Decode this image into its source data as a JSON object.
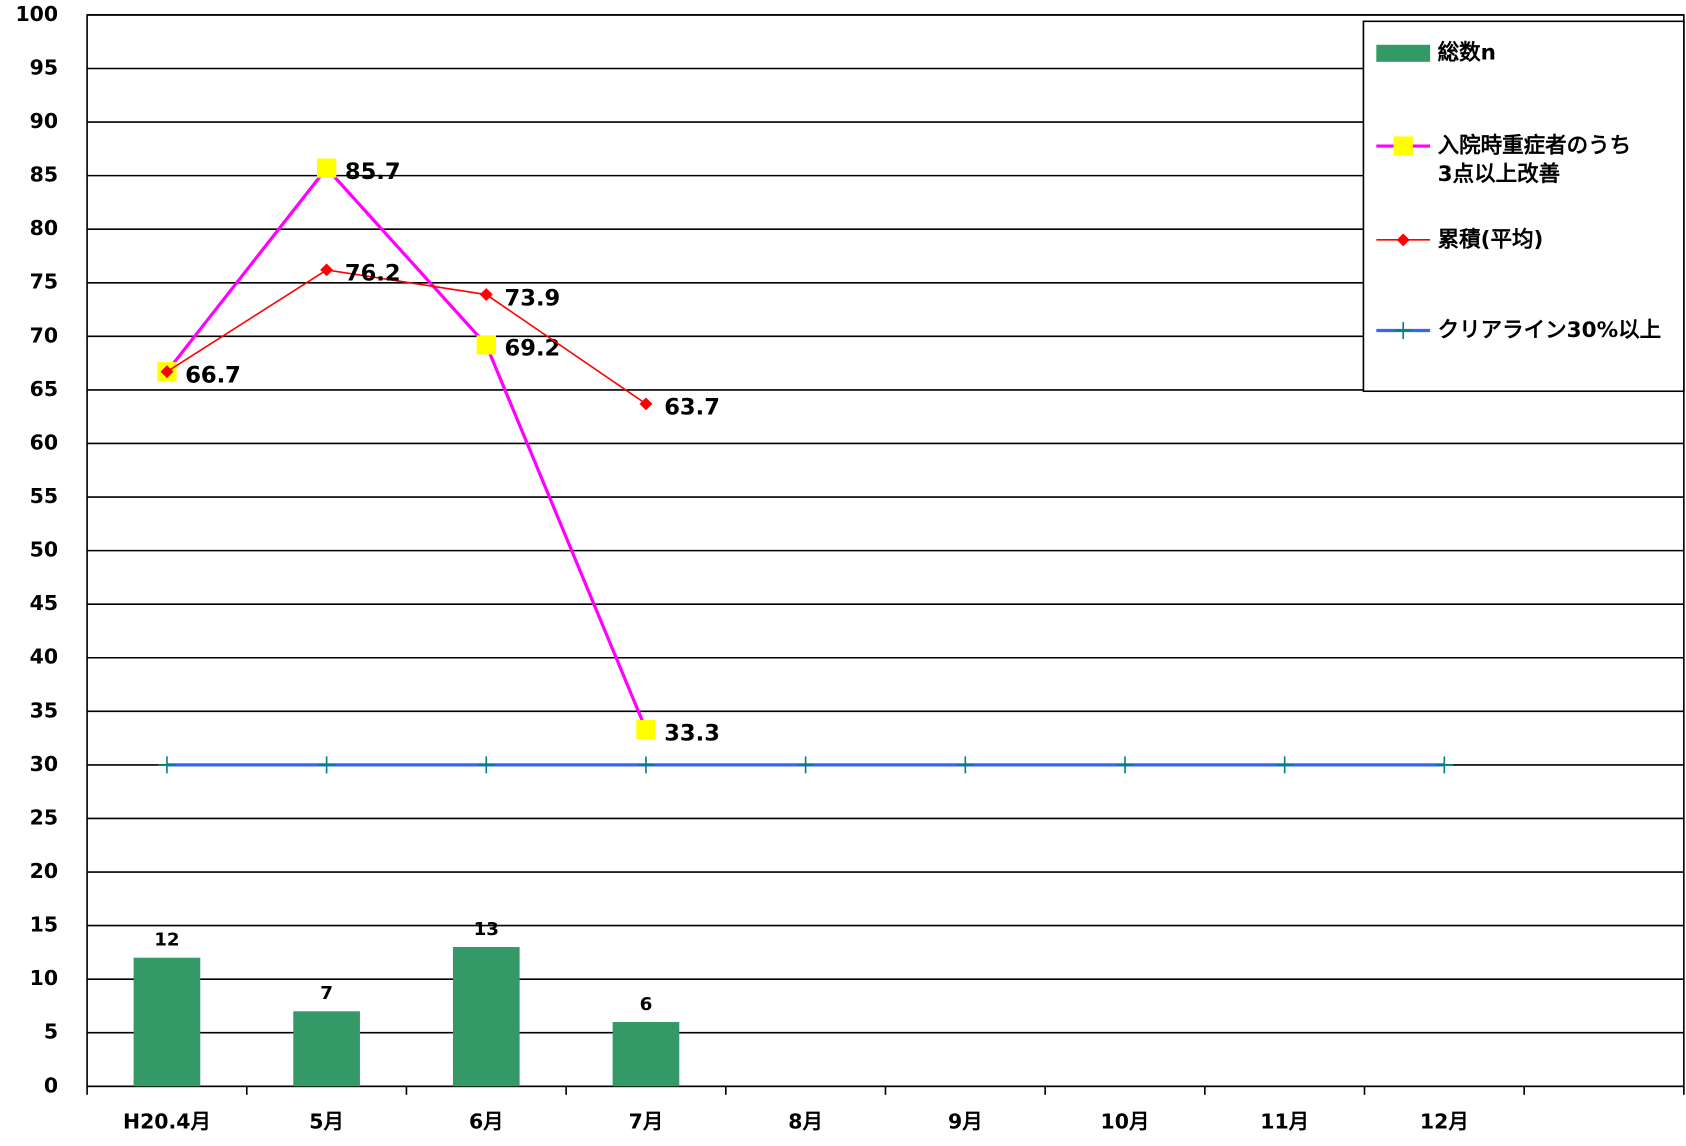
{
  "chart_data": {
    "type": "combo",
    "categories": [
      "H20.4月",
      "5月",
      "6月",
      "7月",
      "8月",
      "9月",
      "10月",
      "11月",
      "12月",
      null
    ],
    "series": [
      {
        "name": "総数n",
        "type": "bar",
        "color": "#339966",
        "values": [
          12,
          7,
          13,
          6,
          null,
          null,
          null,
          null,
          null,
          null
        ]
      },
      {
        "name": "入院時重症者のうち\n3点以上改善",
        "type": "line",
        "color": "#ff00ff",
        "marker": "square",
        "marker_color": "#ffff00",
        "values": [
          66.7,
          85.7,
          69.2,
          33.3,
          null,
          null,
          null,
          null,
          null,
          null
        ]
      },
      {
        "name": "累積(平均)",
        "type": "line",
        "color": "#ff0000",
        "marker": "diamond",
        "marker_color": "#ff0000",
        "values": [
          66.7,
          76.2,
          73.9,
          63.7,
          null,
          null,
          null,
          null,
          null,
          null
        ]
      },
      {
        "name": "クリアライン30%以上",
        "type": "line",
        "color": "#3366ff",
        "marker": "plus",
        "marker_color": "#008080",
        "values": [
          30,
          30,
          30,
          30,
          30,
          30,
          30,
          30,
          30,
          null
        ]
      }
    ],
    "ylim": [
      0,
      100
    ],
    "yticks": [
      0,
      5,
      10,
      15,
      20,
      25,
      30,
      35,
      40,
      45,
      50,
      55,
      60,
      65,
      70,
      75,
      80,
      85,
      90,
      95,
      100
    ],
    "grid": true,
    "legend": "upper right"
  }
}
